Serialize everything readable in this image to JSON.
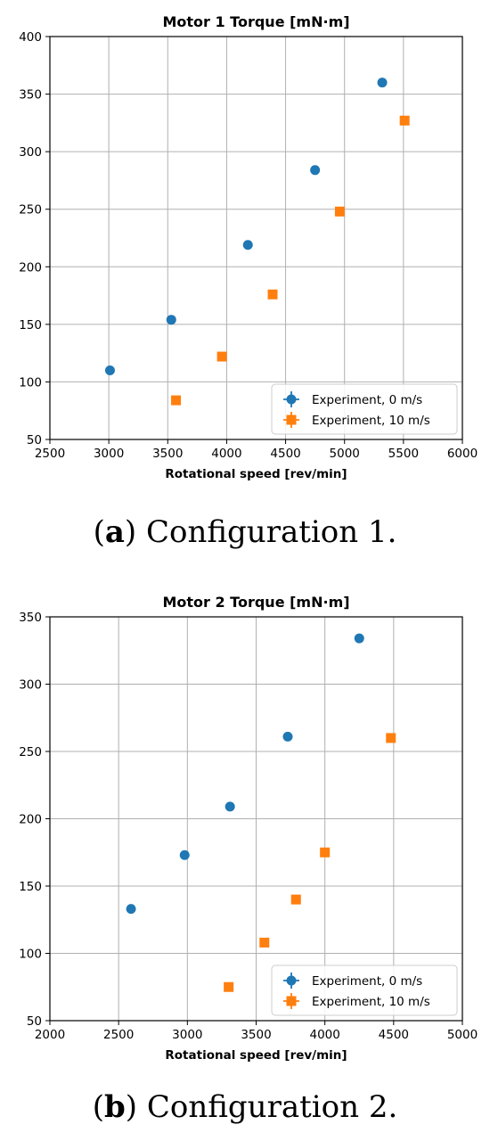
{
  "colors": {
    "series_0": "#1f77b4",
    "series_1": "#ff7f0e",
    "grid": "#b0b0b0",
    "axis": "#000000"
  },
  "chart_data": [
    {
      "type": "scatter",
      "title": "Motor 1 Torque [mN·m]",
      "xlabel": "Rotational speed [rev/min]",
      "ylabel": "",
      "xlim": [
        2500,
        6000
      ],
      "ylim": [
        50,
        400
      ],
      "xticks": [
        2500,
        3000,
        3500,
        4000,
        4500,
        5000,
        5500,
        6000
      ],
      "yticks": [
        50,
        100,
        150,
        200,
        250,
        300,
        350,
        400
      ],
      "grid": true,
      "legend_position": "lower-right",
      "series": [
        {
          "name": "Experiment, 0 m/s",
          "marker": "circle",
          "x": [
            3010,
            3530,
            4180,
            4750,
            5320
          ],
          "y": [
            110,
            154,
            219,
            284,
            360
          ]
        },
        {
          "name": "Experiment, 10 m/s",
          "marker": "square",
          "x": [
            3570,
            3960,
            4390,
            4960,
            5510
          ],
          "y": [
            84,
            122,
            176,
            248,
            327
          ]
        }
      ],
      "caption_label": "a",
      "caption_text": "Configuration 1."
    },
    {
      "type": "scatter",
      "title": "Motor 2 Torque [mN·m]",
      "xlabel": "Rotational speed [rev/min]",
      "ylabel": "",
      "xlim": [
        2000,
        5000
      ],
      "ylim": [
        50,
        350
      ],
      "xticks": [
        2000,
        2500,
        3000,
        3500,
        4000,
        4500,
        5000
      ],
      "yticks": [
        50,
        100,
        150,
        200,
        250,
        300,
        350
      ],
      "grid": true,
      "legend_position": "lower-right",
      "series": [
        {
          "name": "Experiment, 0 m/s",
          "marker": "circle",
          "x": [
            2590,
            2980,
            3310,
            3730,
            4250
          ],
          "y": [
            133,
            173,
            209,
            261,
            334
          ]
        },
        {
          "name": "Experiment, 10 m/s",
          "marker": "square",
          "x": [
            3300,
            3560,
            3790,
            4000,
            4480
          ],
          "y": [
            75,
            108,
            140,
            175,
            260
          ]
        }
      ],
      "caption_label": "b",
      "caption_text": "Configuration 2."
    }
  ]
}
